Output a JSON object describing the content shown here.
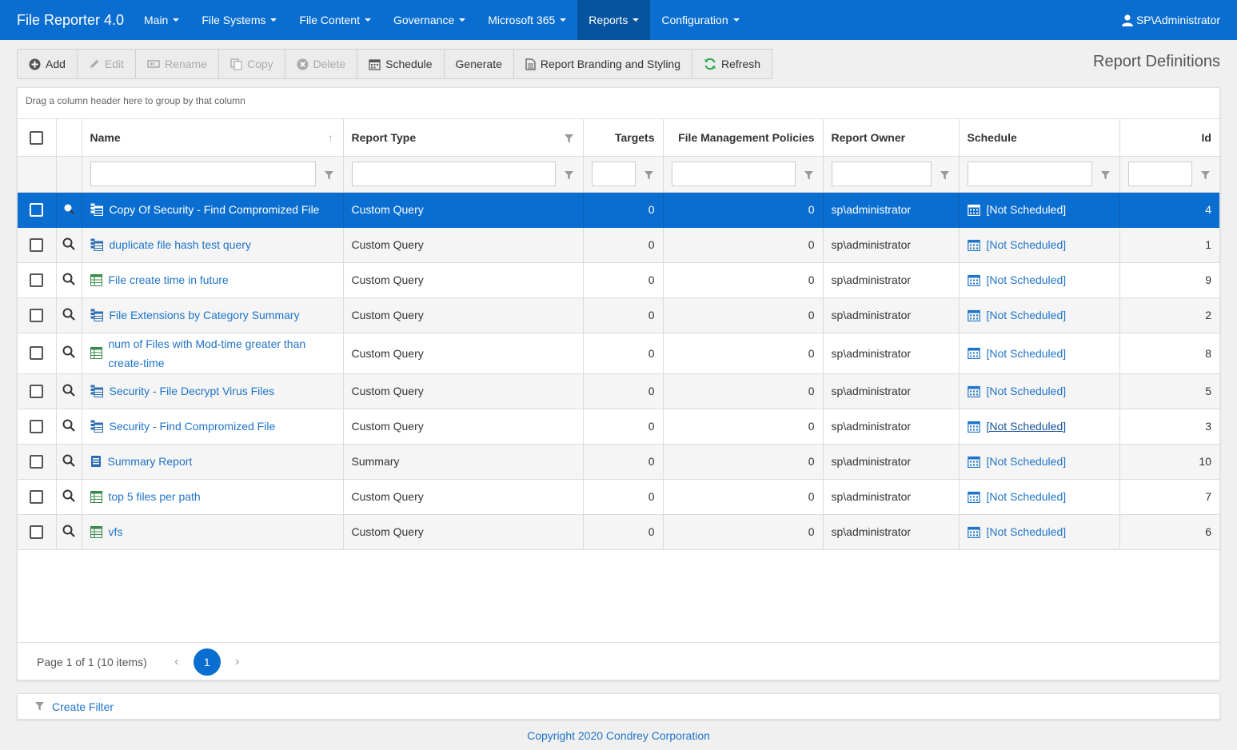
{
  "app": {
    "title": "File Reporter 4.0",
    "user": "SP\\Administrator"
  },
  "nav": {
    "items": [
      {
        "label": "Main"
      },
      {
        "label": "File Systems"
      },
      {
        "label": "File Content"
      },
      {
        "label": "Governance"
      },
      {
        "label": "Microsoft 365"
      },
      {
        "label": "Reports"
      },
      {
        "label": "Configuration"
      }
    ],
    "active": "Reports"
  },
  "toolbar": {
    "add": "Add",
    "edit": "Edit",
    "rename": "Rename",
    "copy": "Copy",
    "delete": "Delete",
    "schedule": "Schedule",
    "generate": "Generate",
    "branding": "Report Branding and Styling",
    "refresh": "Refresh"
  },
  "page": {
    "title": "Report Definitions"
  },
  "grid": {
    "group_hint": "Drag a column header here to group by that column",
    "columns": {
      "name": "Name",
      "report_type": "Report Type",
      "targets": "Targets",
      "policies": "File Management Policies",
      "owner": "Report Owner",
      "schedule": "Schedule",
      "id": "Id"
    },
    "rows": [
      {
        "name": "Copy Of Security - Find Compromized File",
        "type": "Custom Query",
        "targets": "0",
        "policies": "0",
        "owner": "sp\\administrator",
        "schedule": "[Not Scheduled]",
        "id": "4"
      },
      {
        "name": "duplicate file hash test query",
        "type": "Custom Query",
        "targets": "0",
        "policies": "0",
        "owner": "sp\\administrator",
        "schedule": "[Not Scheduled]",
        "id": "1"
      },
      {
        "name": "File create time in future",
        "type": "Custom Query",
        "targets": "0",
        "policies": "0",
        "owner": "sp\\administrator",
        "schedule": "[Not Scheduled]",
        "id": "9"
      },
      {
        "name": "File Extensions by Category Summary",
        "type": "Custom Query",
        "targets": "0",
        "policies": "0",
        "owner": "sp\\administrator",
        "schedule": "[Not Scheduled]",
        "id": "2"
      },
      {
        "name": "num of Files with Mod-time greater than create-time",
        "type": "Custom Query",
        "targets": "0",
        "policies": "0",
        "owner": "sp\\administrator",
        "schedule": "[Not Scheduled]",
        "id": "8"
      },
      {
        "name": "Security - File Decrypt Virus Files",
        "type": "Custom Query",
        "targets": "0",
        "policies": "0",
        "owner": "sp\\administrator",
        "schedule": "[Not Scheduled]",
        "id": "5"
      },
      {
        "name": "Security - Find Compromized File",
        "type": "Custom Query",
        "targets": "0",
        "policies": "0",
        "owner": "sp\\administrator",
        "schedule": "[Not Scheduled]",
        "id": "3"
      },
      {
        "name": "Summary Report",
        "type": "Summary",
        "targets": "0",
        "policies": "0",
        "owner": "sp\\administrator",
        "schedule": "[Not Scheduled]",
        "id": "10"
      },
      {
        "name": "top 5 files per path",
        "type": "Custom Query",
        "targets": "0",
        "policies": "0",
        "owner": "sp\\administrator",
        "schedule": "[Not Scheduled]",
        "id": "7"
      },
      {
        "name": "vfs",
        "type": "Custom Query",
        "targets": "0",
        "policies": "0",
        "owner": "sp\\administrator",
        "schedule": "[Not Scheduled]",
        "id": "6"
      }
    ]
  },
  "pager": {
    "info": "Page 1 of 1 (10 items)",
    "current": "1",
    "prev": "‹",
    "next": "›"
  },
  "footer": {
    "create_filter": "Create Filter",
    "copyright": "Copyright 2020 Condrey Corporation"
  },
  "colors": {
    "nav_bg": "#0a6ed1",
    "nav_active": "#06539e",
    "link": "#1f74c9",
    "selected_row": "#0a6ed1"
  }
}
